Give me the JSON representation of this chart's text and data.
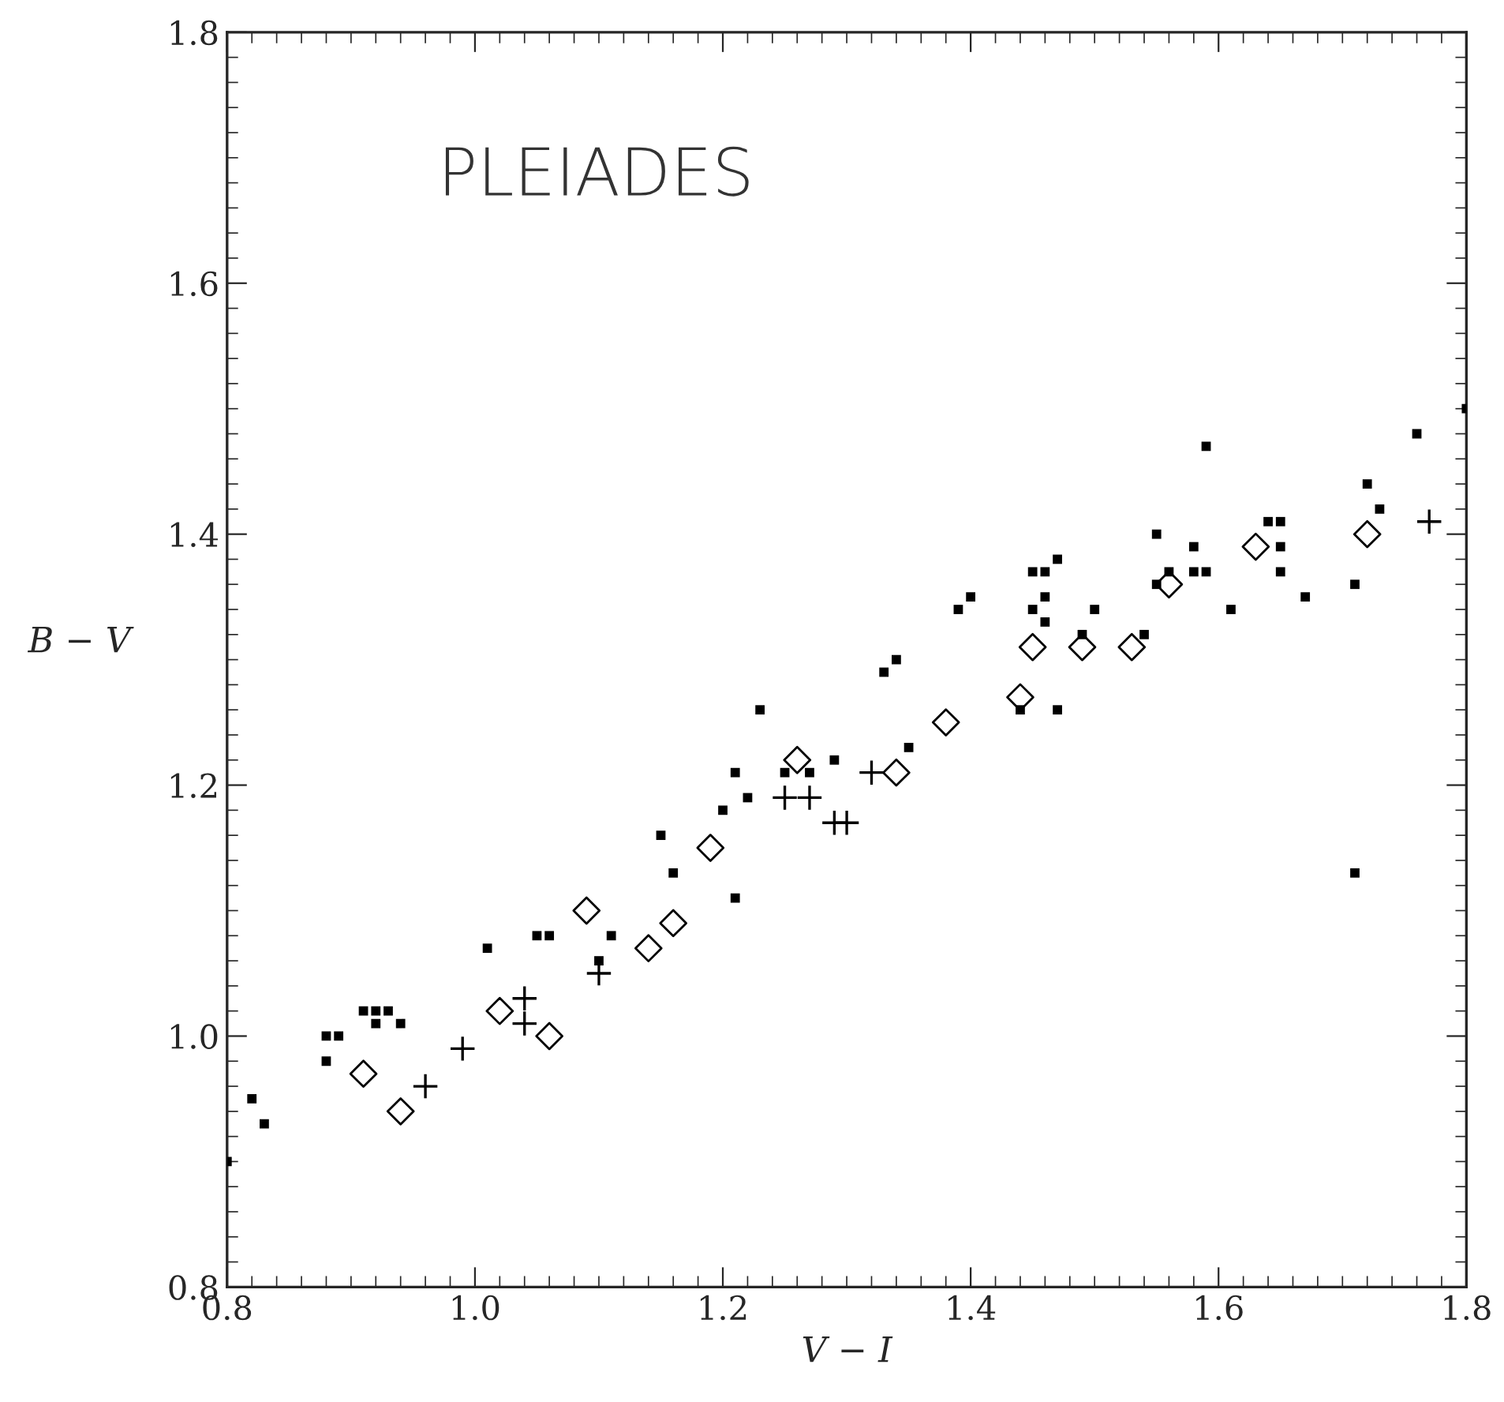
{
  "chart_data": {
    "type": "scatter",
    "title": "PLEIADES",
    "xlabel": "V − I",
    "ylabel": "B − V",
    "xlim": [
      0.8,
      1.8
    ],
    "ylim": [
      0.8,
      1.8
    ],
    "xticks": [
      {
        "value": 0.8,
        "label": "0.8"
      },
      {
        "value": 1.0,
        "label": "1.0"
      },
      {
        "value": 1.2,
        "label": "1.2"
      },
      {
        "value": 1.4,
        "label": "1.4"
      },
      {
        "value": 1.6,
        "label": "1.6"
      },
      {
        "value": 1.8,
        "label": "1.8"
      }
    ],
    "yticks": [
      {
        "value": 0.8,
        "label": "0.8"
      },
      {
        "value": 1.0,
        "label": "1.0"
      },
      {
        "value": 1.2,
        "label": "1.2"
      },
      {
        "value": 1.4,
        "label": "1.4"
      },
      {
        "value": 1.6,
        "label": "1.6"
      },
      {
        "value": 1.8,
        "label": "1.8"
      }
    ],
    "grid": false,
    "legend": false,
    "series": [
      {
        "color": "#000000",
        "marker": "square",
        "x": [
          0.8,
          0.82,
          0.83,
          0.88,
          0.88,
          0.89,
          0.91,
          0.92,
          0.93,
          0.92,
          0.94,
          1.01,
          1.05,
          1.06,
          1.1,
          1.11,
          1.15,
          1.16,
          1.2,
          1.21,
          1.22,
          1.21,
          1.23,
          1.25,
          1.27,
          1.29,
          1.33,
          1.34,
          1.35,
          1.39,
          1.4,
          1.44,
          1.45,
          1.46,
          1.47,
          1.45,
          1.46,
          1.46,
          1.47,
          1.49,
          1.5,
          1.54,
          1.55,
          1.55,
          1.56,
          1.58,
          1.58,
          1.59,
          1.59,
          1.61,
          1.64,
          1.65,
          1.65,
          1.65,
          1.67,
          1.71,
          1.71,
          1.72,
          1.73,
          1.76,
          1.8
        ],
        "values": [
          0.9,
          0.95,
          0.93,
          0.98,
          1.0,
          1.0,
          1.02,
          1.02,
          1.02,
          1.01,
          1.01,
          1.07,
          1.08,
          1.08,
          1.06,
          1.08,
          1.16,
          1.13,
          1.18,
          1.21,
          1.19,
          1.11,
          1.26,
          1.21,
          1.21,
          1.22,
          1.29,
          1.3,
          1.23,
          1.34,
          1.35,
          1.26,
          1.37,
          1.37,
          1.38,
          1.34,
          1.35,
          1.33,
          1.26,
          1.32,
          1.34,
          1.32,
          1.4,
          1.36,
          1.37,
          1.39,
          1.37,
          1.37,
          1.47,
          1.34,
          1.41,
          1.41,
          1.39,
          1.37,
          1.35,
          1.36,
          1.13,
          1.44,
          1.42,
          1.48,
          1.5
        ]
      },
      {
        "color": "#000000",
        "marker": "diamond",
        "x": [
          0.91,
          0.94,
          1.02,
          1.06,
          1.09,
          1.14,
          1.16,
          1.19,
          1.26,
          1.34,
          1.38,
          1.44,
          1.45,
          1.49,
          1.53,
          1.56,
          1.63,
          1.72
        ],
        "values": [
          0.97,
          0.94,
          1.02,
          1.0,
          1.1,
          1.07,
          1.09,
          1.15,
          1.22,
          1.21,
          1.25,
          1.27,
          1.31,
          1.31,
          1.31,
          1.36,
          1.39,
          1.4
        ]
      },
      {
        "color": "#000000",
        "marker": "cross",
        "x": [
          0.96,
          0.99,
          1.04,
          1.04,
          1.1,
          1.25,
          1.27,
          1.29,
          1.3,
          1.32,
          1.77
        ],
        "values": [
          0.96,
          0.99,
          1.03,
          1.01,
          1.05,
          1.19,
          1.19,
          1.17,
          1.17,
          1.21,
          1.41
        ]
      }
    ]
  }
}
